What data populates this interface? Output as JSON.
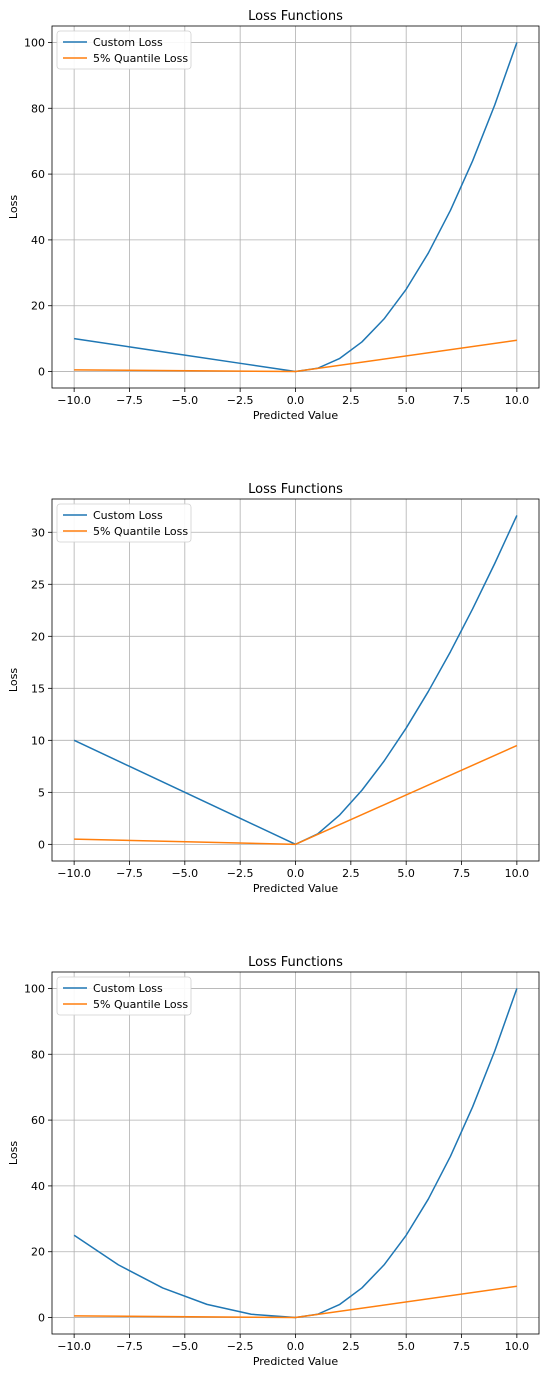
{
  "chart_data": [
    {
      "type": "line",
      "title": "Loss Functions",
      "xlabel": "Predicted Value",
      "ylabel": "Loss",
      "xlim": [
        -11,
        11
      ],
      "ylim": [
        -5,
        105
      ],
      "xticks": [
        -10,
        -7.5,
        -5,
        -2.5,
        0,
        2.5,
        5,
        7.5,
        10
      ],
      "xtick_labels": [
        "−10.0",
        "−7.5",
        "−5.0",
        "−2.5",
        "0.0",
        "2.5",
        "5.0",
        "7.5",
        "10.0"
      ],
      "yticks": [
        0,
        20,
        40,
        60,
        80,
        100
      ],
      "ytick_labels": [
        "0",
        "20",
        "40",
        "60",
        "80",
        "100"
      ],
      "grid": true,
      "legend": "upper-left",
      "series": [
        {
          "name": "Custom Loss",
          "color": "#1f77b4",
          "x": [
            -10,
            -7.5,
            -5,
            -2.5,
            0,
            1,
            2,
            3,
            4,
            5,
            6,
            7,
            8,
            9,
            10
          ],
          "y": [
            10,
            7.5,
            5,
            2.5,
            0,
            1,
            4,
            9,
            16,
            25,
            36,
            49,
            64,
            81,
            100
          ]
        },
        {
          "name": "5% Quantile Loss",
          "color": "#ff7f0e",
          "x": [
            -10,
            0,
            10
          ],
          "y": [
            0.5,
            0,
            9.5
          ]
        }
      ]
    },
    {
      "type": "line",
      "title": "Loss Functions",
      "xlabel": "Predicted Value",
      "ylabel": "Loss",
      "xlim": [
        -11,
        11
      ],
      "ylim": [
        -1.6,
        33.2
      ],
      "xticks": [
        -10,
        -7.5,
        -5,
        -2.5,
        0,
        2.5,
        5,
        7.5,
        10
      ],
      "xtick_labels": [
        "−10.0",
        "−7.5",
        "−5.0",
        "−2.5",
        "0.0",
        "2.5",
        "5.0",
        "7.5",
        "10.0"
      ],
      "yticks": [
        0,
        5,
        10,
        15,
        20,
        25,
        30
      ],
      "ytick_labels": [
        "0",
        "5",
        "10",
        "15",
        "20",
        "25",
        "30"
      ],
      "grid": true,
      "legend": "upper-left",
      "series": [
        {
          "name": "Custom Loss",
          "color": "#1f77b4",
          "x": [
            -10,
            -7.5,
            -5,
            -2.5,
            0,
            1,
            2,
            3,
            4,
            5,
            6,
            7,
            8,
            9,
            10
          ],
          "y": [
            10,
            7.5,
            5,
            2.5,
            0,
            1,
            2.83,
            5.2,
            8,
            11.18,
            14.7,
            18.52,
            22.63,
            27,
            31.62
          ]
        },
        {
          "name": "5% Quantile Loss",
          "color": "#ff7f0e",
          "x": [
            -10,
            0,
            10
          ],
          "y": [
            0.5,
            0,
            9.5
          ]
        }
      ]
    },
    {
      "type": "line",
      "title": "Loss Functions",
      "xlabel": "Predicted Value",
      "ylabel": "Loss",
      "xlim": [
        -11,
        11
      ],
      "ylim": [
        -5,
        105
      ],
      "xticks": [
        -10,
        -7.5,
        -5,
        -2.5,
        0,
        2.5,
        5,
        7.5,
        10
      ],
      "xtick_labels": [
        "−10.0",
        "−7.5",
        "−5.0",
        "−2.5",
        "0.0",
        "2.5",
        "5.0",
        "7.5",
        "10.0"
      ],
      "yticks": [
        0,
        20,
        40,
        60,
        80,
        100
      ],
      "ytick_labels": [
        "0",
        "20",
        "40",
        "60",
        "80",
        "100"
      ],
      "grid": true,
      "legend": "upper-left",
      "series": [
        {
          "name": "Custom Loss",
          "color": "#1f77b4",
          "x": [
            -10,
            -8,
            -6,
            -4,
            -2,
            0,
            1,
            2,
            3,
            4,
            5,
            6,
            7,
            8,
            9,
            10
          ],
          "y": [
            25,
            16,
            9,
            4,
            1,
            0,
            1,
            4,
            9,
            16,
            25,
            36,
            49,
            64,
            81,
            100
          ]
        },
        {
          "name": "5% Quantile Loss",
          "color": "#ff7f0e",
          "x": [
            -10,
            0,
            10
          ],
          "y": [
            0.5,
            0,
            9.5
          ]
        }
      ]
    }
  ]
}
